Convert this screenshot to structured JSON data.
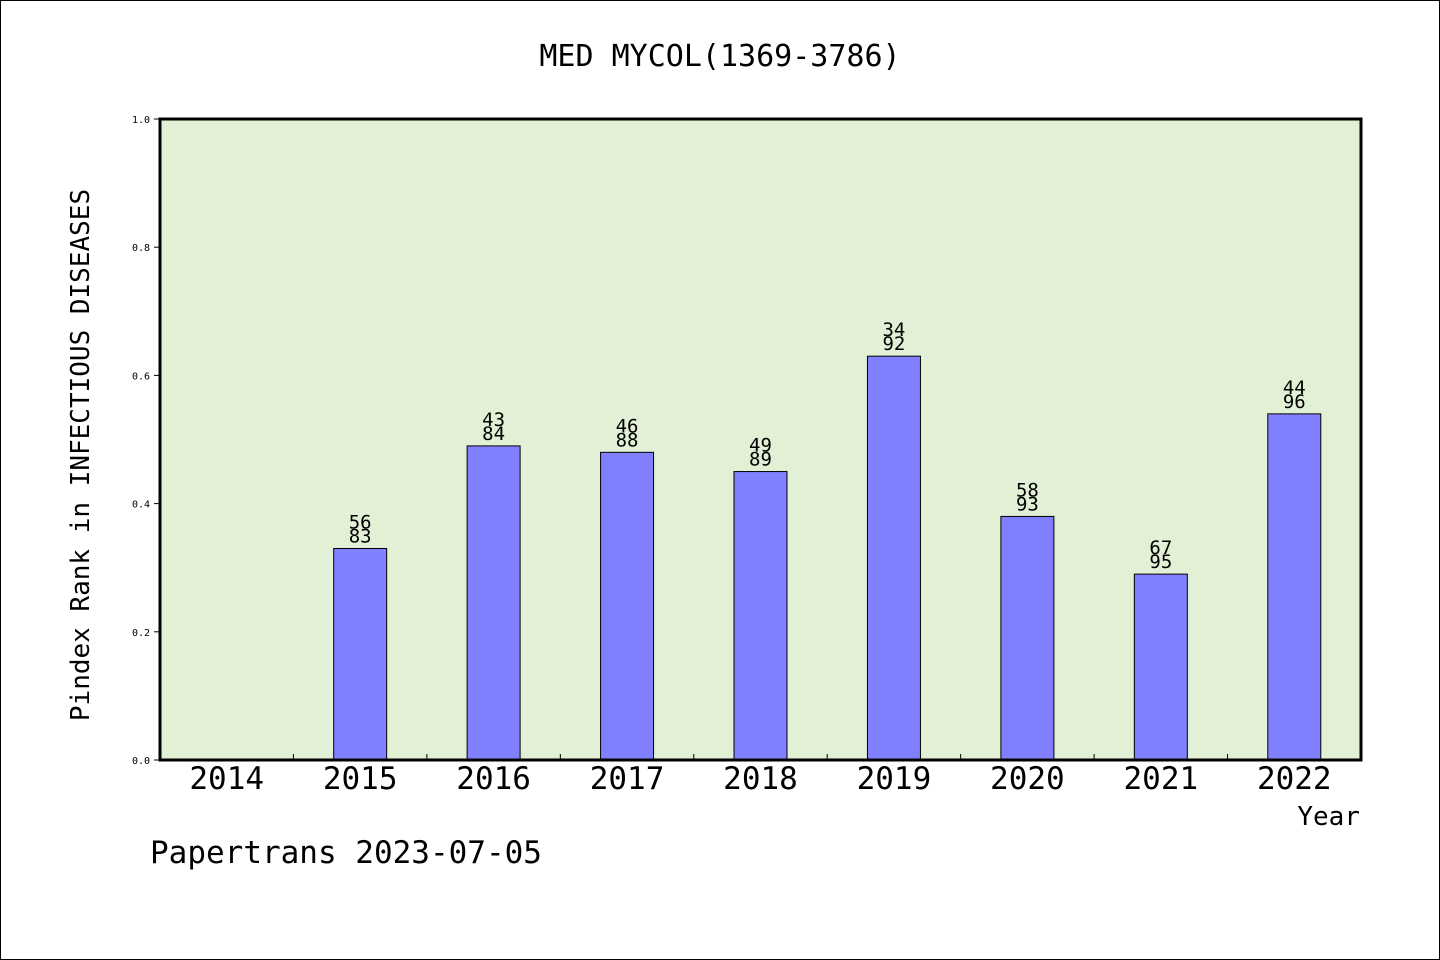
{
  "chart_data": {
    "type": "bar",
    "title": "MED MYCOL(1369-3786)",
    "xlabel": "Year",
    "ylabel": "Pindex Rank in INFECTIOUS DISEASES",
    "categories": [
      "2014",
      "2015",
      "2016",
      "2017",
      "2018",
      "2019",
      "2020",
      "2021",
      "2022"
    ],
    "values": [
      null,
      0.33,
      0.49,
      0.48,
      0.45,
      0.63,
      0.38,
      0.29,
      0.54
    ],
    "bar_labels": [
      null,
      [
        "56",
        "83"
      ],
      [
        "43",
        "84"
      ],
      [
        "46",
        "88"
      ],
      [
        "49",
        "89"
      ],
      [
        "34",
        "92"
      ],
      [
        "58",
        "93"
      ],
      [
        "67",
        "95"
      ],
      [
        "44",
        "96"
      ]
    ],
    "ylim": [
      0,
      1.0
    ],
    "yticks": [
      "0.0",
      "0.2",
      "0.4",
      "0.6",
      "0.8",
      "1.0"
    ],
    "grid": false,
    "colors": {
      "bar": "#8080ff",
      "plot_background": "#e2f0d6"
    }
  },
  "footer": {
    "text": "Papertrans 2023-07-05"
  }
}
